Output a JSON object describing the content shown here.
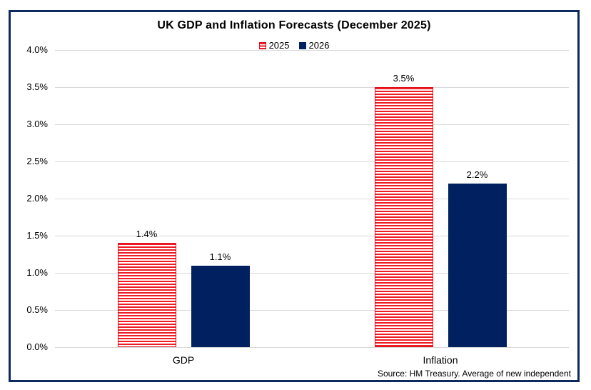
{
  "chart_data": {
    "type": "bar",
    "title": "UK GDP and Inflation Forecasts (December 2025)",
    "categories": [
      "GDP",
      "Inflation"
    ],
    "series": [
      {
        "name": "2025",
        "values": [
          1.4,
          3.5
        ],
        "value_labels": [
          "1.4%",
          "3.5%"
        ],
        "fill": "hatched",
        "color": "#ee1c25"
      },
      {
        "name": "2026",
        "values": [
          1.1,
          2.2
        ],
        "value_labels": [
          "1.1%",
          "2.2%"
        ],
        "fill": "solid",
        "color": "#002060"
      }
    ],
    "y_axis": {
      "min": 0.0,
      "max": 4.0,
      "tick_step": 0.5,
      "ticks": [
        {
          "value": 0.0,
          "label": "0.0%"
        },
        {
          "value": 0.5,
          "label": "0.5%"
        },
        {
          "value": 1.0,
          "label": "1.0%"
        },
        {
          "value": 1.5,
          "label": "1.5%"
        },
        {
          "value": 2.0,
          "label": "2.0%"
        },
        {
          "value": 2.5,
          "label": "2.5%"
        },
        {
          "value": 3.0,
          "label": "3.0%"
        },
        {
          "value": 3.5,
          "label": "3.5%"
        },
        {
          "value": 4.0,
          "label": "4.0%"
        }
      ]
    },
    "gridlines": true,
    "legend_position": "top",
    "source": "Source: HM Treasury. Average of new independent"
  },
  "colors": {
    "frame_border": "#0d2a5c",
    "bar_navy": "#002060",
    "bar_red": "#ee1c25",
    "gridline": "#d9d9d9",
    "text": "#000000"
  }
}
